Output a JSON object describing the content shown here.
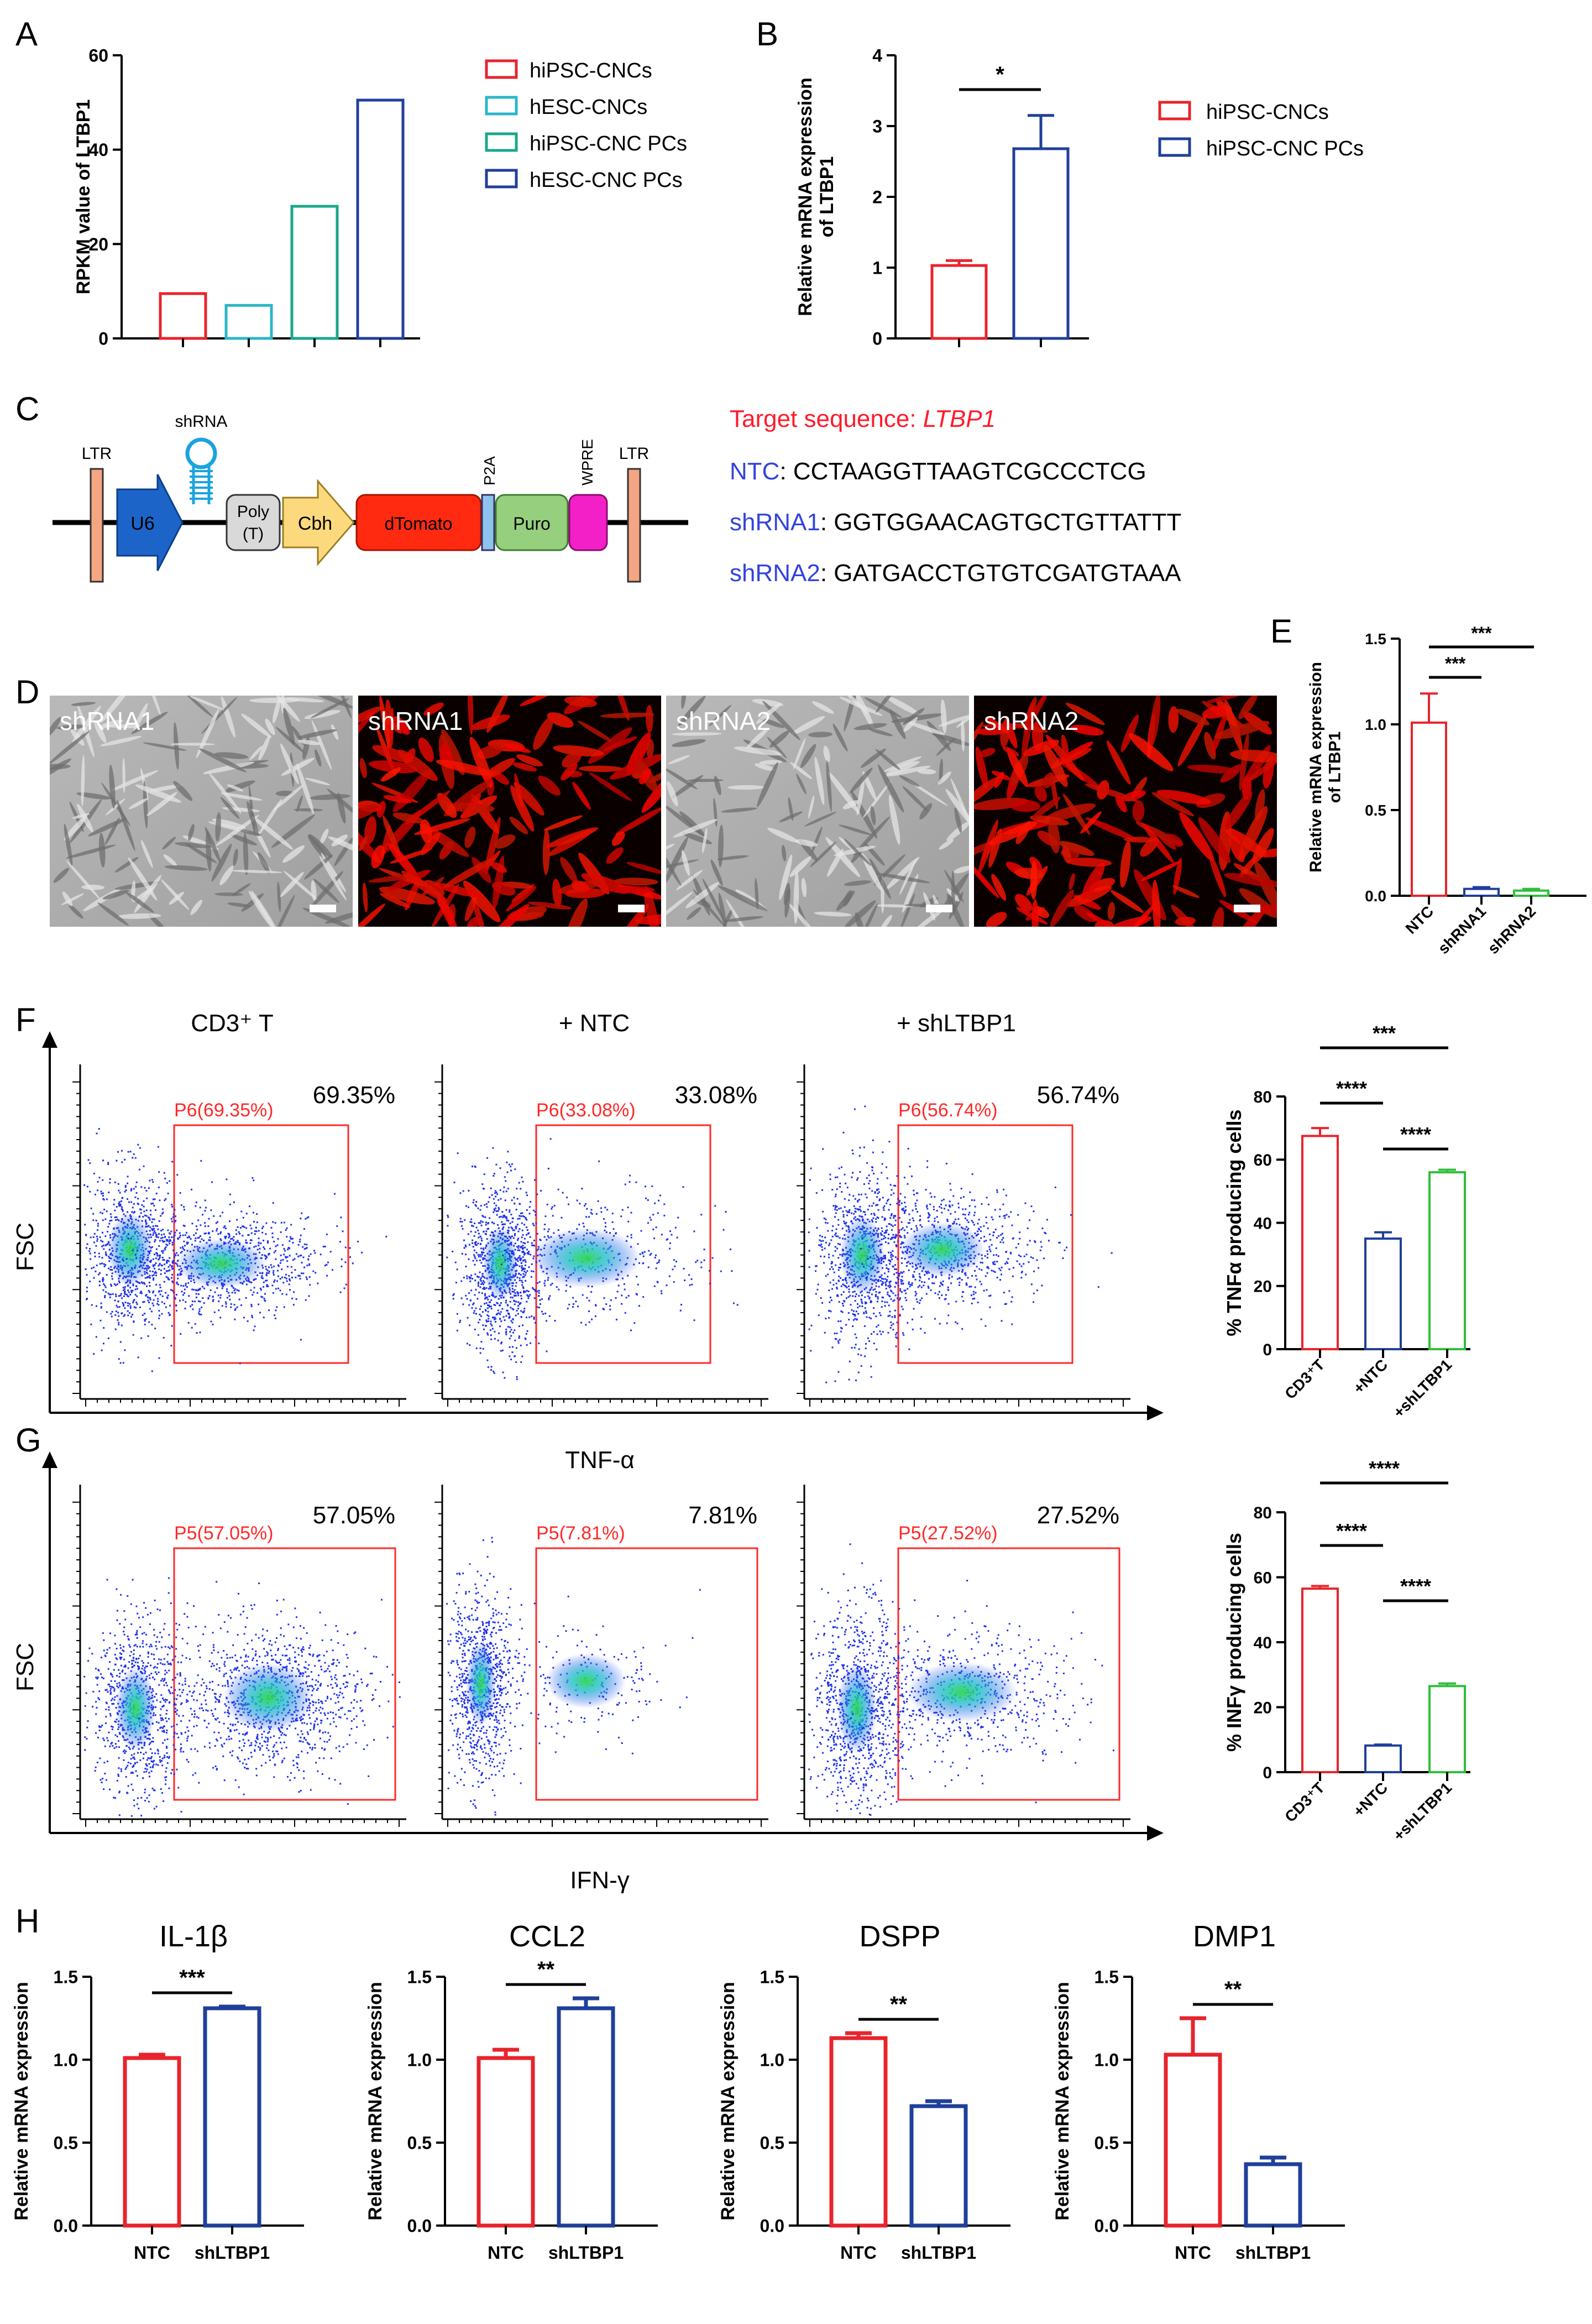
{
  "colors": {
    "red": "#e8242c",
    "blue": "#1f3f9a",
    "cyan": "#2bb6c8",
    "teal": "#1aa88c",
    "green": "#2fbf3a",
    "gate": "#ff2a2a",
    "nameRed": "#ff1c2b",
    "nameBlue": "#3344dd"
  },
  "panelA": {
    "letter": "A",
    "chart_data": {
      "type": "bar",
      "ylabel": "RPKM value of LTBP1",
      "ylim": [
        0,
        60
      ],
      "yticks": [
        "0",
        "20",
        "40",
        "60"
      ],
      "categories": [
        "hiPSC-CNCs",
        "hESC-CNCs",
        "hiPSC-CNC PCs",
        "hESC-CNC PCs"
      ],
      "values": [
        9.5,
        7,
        28,
        50.5
      ],
      "legend": [
        "hiPSC-CNCs",
        "hESC-CNCs",
        "hiPSC-CNC PCs",
        "hESC-CNC PCs"
      ],
      "legend_position": "right"
    }
  },
  "panelB": {
    "letter": "B",
    "chart_data": {
      "type": "bar",
      "ylabel1": "Relative mRNA expression",
      "ylabel2": "of LTBP1",
      "ylim": [
        0,
        4
      ],
      "yticks": [
        "0",
        "1",
        "2",
        "3",
        "4"
      ],
      "categories": [
        "hiPSC-CNCs",
        "hiPSC-CNC PCs"
      ],
      "values": [
        1.03,
        2.68
      ],
      "errors": [
        0.07,
        0.47
      ],
      "significance": "*",
      "legend": [
        "hiPSC-CNCs",
        "hiPSC-CNC PCs"
      ]
    }
  },
  "panelC": {
    "letter": "C",
    "construct": {
      "ltr": "LTR",
      "shrna": "shRNA",
      "u6": "U6",
      "poly1": "Poly",
      "poly2": "(T)",
      "cbh": "Cbh",
      "dtomato": "dTomato",
      "p2a": "P2A",
      "puro": "Puro",
      "wpre": "WPRE"
    },
    "target_prefix": "Target sequence: ",
    "target_gene": "LTBP1",
    "sequences": [
      {
        "name": "NTC",
        "seq": ": CCTAAGGTTAAGTCGCCCTCG"
      },
      {
        "name": "shRNA1",
        "seq": ": GGTGGAACAGTGCTGTTATTT"
      },
      {
        "name": "shRNA2",
        "seq": ": GATGACCTGTGTCGATGTAAA"
      }
    ]
  },
  "panelD": {
    "letter": "D",
    "images": [
      {
        "label": "shRNA1",
        "kind": "phase"
      },
      {
        "label": "shRNA1",
        "kind": "fluorescence"
      },
      {
        "label": "shRNA2",
        "kind": "phase"
      },
      {
        "label": "shRNA2",
        "kind": "fluorescence"
      }
    ]
  },
  "panelE": {
    "letter": "E",
    "chart_data": {
      "type": "bar",
      "ylabel1": "Relative mRNA expression",
      "ylabel2": "of LTBP1",
      "ylim": [
        0,
        1.5
      ],
      "yticks": [
        "0.0",
        "0.5",
        "1.0",
        "1.5"
      ],
      "categories": [
        "NTC",
        "shRNA1",
        "shRNA2"
      ],
      "values": [
        1.01,
        0.04,
        0.03
      ],
      "errors": [
        0.17,
        0.01,
        0.01
      ],
      "significance": [
        "***",
        "***"
      ]
    }
  },
  "panelF": {
    "letter": "F",
    "ylabel": "FSC",
    "xlabel": "TNF-α",
    "plots": [
      {
        "title": "CD3⁺ T",
        "gate": "P6(69.35%)",
        "pct": "69.35%"
      },
      {
        "title": "+ NTC",
        "gate": "P6(33.08%)",
        "pct": "33.08%"
      },
      {
        "title": "+ shLTBP1",
        "gate": "P6(56.74%)",
        "pct": "56.74%"
      }
    ],
    "chart_data": {
      "type": "bar",
      "ylabel": "% TNFα producing cells",
      "ylim": [
        0,
        80
      ],
      "yticks": [
        "0",
        "20",
        "40",
        "60",
        "80"
      ],
      "categories": [
        "CD3⁺T",
        "+NTC",
        "+shLTBP1"
      ],
      "values": [
        67.5,
        35,
        56
      ],
      "errors": [
        2.5,
        2,
        0.8
      ],
      "significance": [
        "***",
        "****",
        "****"
      ]
    }
  },
  "panelG": {
    "letter": "G",
    "ylabel": "FSC",
    "xlabel": "IFN-γ",
    "plots": [
      {
        "title": "",
        "gate": "P5(57.05%)",
        "pct": "57.05%"
      },
      {
        "title": "",
        "gate": "P5(7.81%)",
        "pct": "7.81%"
      },
      {
        "title": "",
        "gate": "P5(27.52%)",
        "pct": "27.52%"
      }
    ],
    "chart_data": {
      "type": "bar",
      "ylabel": "% INFγ producing cells",
      "ylim": [
        0,
        80
      ],
      "yticks": [
        "0",
        "20",
        "40",
        "60",
        "80"
      ],
      "categories": [
        "CD3⁺T",
        "+NTC",
        "+shLTBP1"
      ],
      "values": [
        56.5,
        8.2,
        26.5
      ],
      "errors": [
        0.8,
        0.3,
        0.8
      ],
      "significance": [
        "****",
        "****",
        "****"
      ]
    }
  },
  "panelH": {
    "letter": "H",
    "chart_data": [
      {
        "type": "bar",
        "title": "IL-1β",
        "ylabel": "Relative mRNA expression",
        "ylim": [
          0,
          1.5
        ],
        "yticks": [
          "0.0",
          "0.5",
          "1.0",
          "1.5"
        ],
        "categories": [
          "NTC",
          "shLTBP1"
        ],
        "values": [
          1.01,
          1.31
        ],
        "errors": [
          0.02,
          0.01
        ],
        "significance": "***"
      },
      {
        "type": "bar",
        "title": "CCL2",
        "ylabel": "Relative mRNA expression",
        "ylim": [
          0,
          1.5
        ],
        "yticks": [
          "0.0",
          "0.5",
          "1.0",
          "1.5"
        ],
        "categories": [
          "NTC",
          "shLTBP1"
        ],
        "values": [
          1.01,
          1.31
        ],
        "errors": [
          0.05,
          0.06
        ],
        "significance": "**"
      },
      {
        "type": "bar",
        "title": "DSPP",
        "ylabel": "Relative mRNA expression",
        "ylim": [
          0,
          1.5
        ],
        "yticks": [
          "0.0",
          "0.5",
          "1.0",
          "1.5"
        ],
        "categories": [
          "NTC",
          "shLTBP1"
        ],
        "values": [
          1.13,
          0.72
        ],
        "errors": [
          0.03,
          0.03
        ],
        "significance": "**"
      },
      {
        "type": "bar",
        "title": "DMP1",
        "ylabel": "Relative mRNA expression",
        "ylim": [
          0,
          1.5
        ],
        "yticks": [
          "0.0",
          "0.5",
          "1.0",
          "1.5"
        ],
        "categories": [
          "NTC",
          "shLTBP1"
        ],
        "values": [
          1.03,
          0.37
        ],
        "errors": [
          0.22,
          0.04
        ],
        "significance": "**"
      }
    ]
  }
}
